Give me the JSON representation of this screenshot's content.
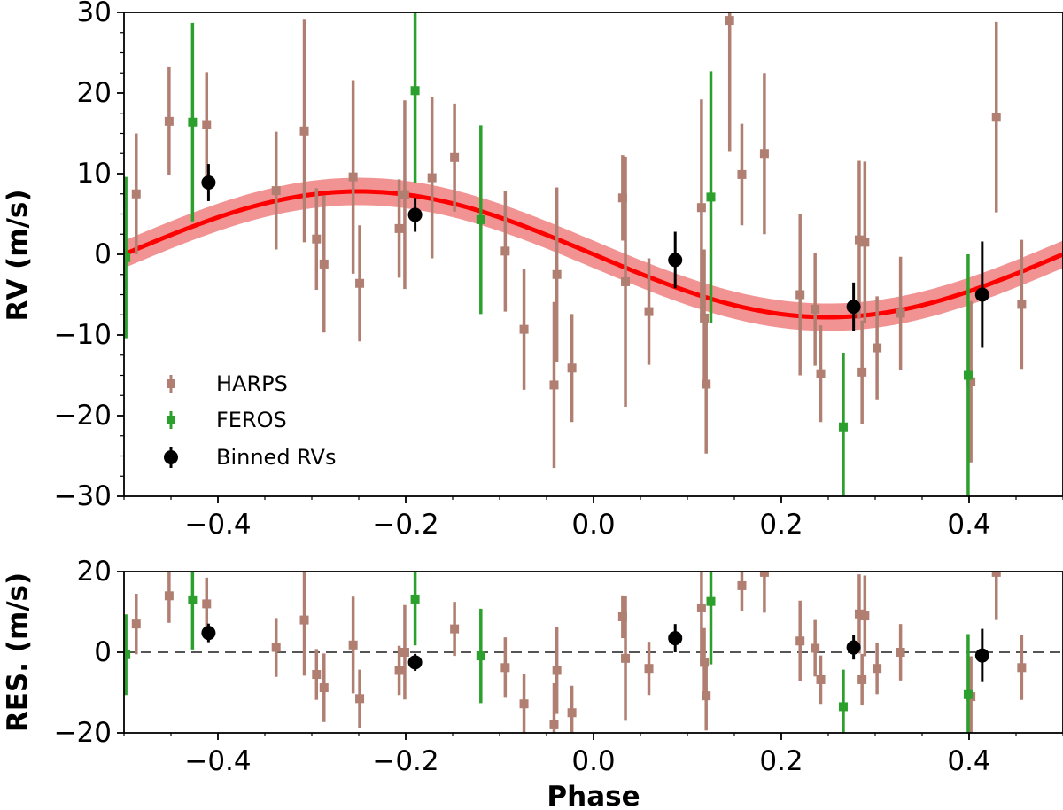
{
  "chart_data": [
    {
      "type": "scatter",
      "panel": "main",
      "ylabel": "RV (m/s)",
      "xlim": [
        -0.5,
        0.5
      ],
      "ylim": [
        -30,
        30
      ],
      "xticks": [
        -0.4,
        -0.2,
        0.0,
        0.2,
        0.4
      ],
      "xtick_labels": [
        "−0.4",
        "−0.2",
        "0.0",
        "0.2",
        "0.4"
      ],
      "yticks": [
        -30,
        -20,
        -10,
        0,
        10,
        20,
        30
      ],
      "ytick_labels": [
        "−30",
        "−20",
        "−10",
        "0",
        "10",
        "20",
        "30"
      ],
      "legend_position": "lower-left",
      "model": {
        "label": "",
        "amplitude": 7.8,
        "peak_phase": -0.25,
        "band_halfwidth": 1.7,
        "color": "#ff0000",
        "band_color": "#f08080"
      },
      "series": [
        {
          "name": "HARPS",
          "color": "#b07f72",
          "points": [
            {
              "x": -0.487,
              "y": 7.5,
              "err": 7.5
            },
            {
              "x": -0.452,
              "y": 16.5,
              "err": 6.7
            },
            {
              "x": -0.412,
              "y": 16.1,
              "err": 6.5
            },
            {
              "x": -0.338,
              "y": 7.9,
              "err": 7.3
            },
            {
              "x": -0.308,
              "y": 15.3,
              "err": 13.8
            },
            {
              "x": -0.295,
              "y": 1.9,
              "err": 6.3
            },
            {
              "x": -0.287,
              "y": -1.2,
              "err": 8.5
            },
            {
              "x": -0.256,
              "y": 9.6,
              "err": 12.0
            },
            {
              "x": -0.249,
              "y": -3.6,
              "err": 7.2
            },
            {
              "x": -0.207,
              "y": 3.2,
              "err": 6.1
            },
            {
              "x": -0.201,
              "y": 7.4,
              "err": 11.7
            },
            {
              "x": -0.172,
              "y": 9.5,
              "err": 10.0
            },
            {
              "x": -0.148,
              "y": 12.0,
              "err": 6.7
            },
            {
              "x": -0.094,
              "y": 0.4,
              "err": 7.5
            },
            {
              "x": -0.074,
              "y": -9.3,
              "err": 7.5
            },
            {
              "x": -0.042,
              "y": -16.2,
              "err": 10.3
            },
            {
              "x": -0.039,
              "y": -2.5,
              "err": 10.8
            },
            {
              "x": -0.023,
              "y": -14.1,
              "err": 6.7
            },
            {
              "x": 0.031,
              "y": 7.0,
              "err": 5.3
            },
            {
              "x": 0.034,
              "y": -3.4,
              "err": 15.5
            },
            {
              "x": 0.059,
              "y": -7.1,
              "err": 6.6
            },
            {
              "x": 0.115,
              "y": 5.8,
              "err": 13.4
            },
            {
              "x": 0.118,
              "y": -7.9,
              "err": 8.5
            },
            {
              "x": 0.12,
              "y": -16.1,
              "err": 8.6
            },
            {
              "x": 0.158,
              "y": 9.9,
              "err": 6.3
            },
            {
              "x": 0.145,
              "y": 29.0,
              "err": 16.2
            },
            {
              "x": 0.182,
              "y": 12.5,
              "err": 10.0
            },
            {
              "x": 0.22,
              "y": -5.0,
              "err": 10.0
            },
            {
              "x": 0.236,
              "y": -6.8,
              "err": 7.0
            },
            {
              "x": 0.242,
              "y": -14.8,
              "err": 6.0
            },
            {
              "x": 0.283,
              "y": 1.8,
              "err": 9.8
            },
            {
              "x": 0.286,
              "y": -14.6,
              "err": 6.4
            },
            {
              "x": 0.289,
              "y": 1.5,
              "err": 10.0
            },
            {
              "x": 0.302,
              "y": -11.6,
              "err": 6.4
            },
            {
              "x": 0.327,
              "y": -7.3,
              "err": 7.0
            },
            {
              "x": 0.402,
              "y": -15.8,
              "err": 10.0
            },
            {
              "x": 0.429,
              "y": 17.0,
              "err": 11.8
            },
            {
              "x": 0.456,
              "y": -6.2,
              "err": 8.0
            }
          ]
        },
        {
          "name": "FEROS",
          "color": "#2ca02c",
          "points": [
            {
              "x": -0.498,
              "y": -0.4,
              "err": 10.0
            },
            {
              "x": -0.427,
              "y": 16.4,
              "err": 12.3
            },
            {
              "x": -0.19,
              "y": 20.3,
              "err": 11.5
            },
            {
              "x": -0.12,
              "y": 4.3,
              "err": 11.7
            },
            {
              "x": 0.125,
              "y": 7.1,
              "err": 15.6
            },
            {
              "x": 0.266,
              "y": -21.4,
              "err": 9.2
            },
            {
              "x": 0.399,
              "y": -15.0,
              "err": 15.0
            }
          ]
        },
        {
          "name": "Binned RVs",
          "color": "#000000",
          "points": [
            {
              "x": -0.41,
              "y": 8.9,
              "err": 2.3
            },
            {
              "x": -0.19,
              "y": 4.9,
              "err": 2.1
            },
            {
              "x": 0.087,
              "y": -0.7,
              "err": 3.5
            },
            {
              "x": 0.277,
              "y": -6.5,
              "err": 3.0
            },
            {
              "x": 0.414,
              "y": -5.0,
              "err": 6.6
            }
          ]
        }
      ]
    },
    {
      "type": "scatter",
      "panel": "residuals",
      "xlabel": "Phase",
      "ylabel": "RES. (m/s)",
      "xlim": [
        -0.5,
        0.5
      ],
      "ylim": [
        -20,
        20
      ],
      "xticks": [
        -0.4,
        -0.2,
        0.0,
        0.2,
        0.4
      ],
      "xtick_labels": [
        "−0.4",
        "−0.2",
        "0.0",
        "0.2",
        "0.4"
      ],
      "yticks": [
        -20,
        0,
        20
      ],
      "ytick_labels": [
        "−20",
        "0",
        "20"
      ],
      "zero_line": true,
      "series": [
        {
          "name": "HARPS",
          "color": "#b07f72",
          "points": [
            {
              "x": -0.487,
              "y": 7.0,
              "err": 7.5
            },
            {
              "x": -0.452,
              "y": 14.0,
              "err": 6.7
            },
            {
              "x": -0.412,
              "y": 12.0,
              "err": 6.5
            },
            {
              "x": -0.338,
              "y": 1.2,
              "err": 7.3
            },
            {
              "x": -0.308,
              "y": 8.0,
              "err": 13.8
            },
            {
              "x": -0.295,
              "y": -5.5,
              "err": 6.3
            },
            {
              "x": -0.287,
              "y": -8.8,
              "err": 8.5
            },
            {
              "x": -0.256,
              "y": 1.8,
              "err": 12.0
            },
            {
              "x": -0.249,
              "y": -11.5,
              "err": 7.2
            },
            {
              "x": -0.207,
              "y": -4.5,
              "err": 6.1
            },
            {
              "x": -0.201,
              "y": 0.0,
              "err": 11.7
            },
            {
              "x": -0.148,
              "y": 5.8,
              "err": 6.7
            },
            {
              "x": -0.094,
              "y": -3.8,
              "err": 7.5
            },
            {
              "x": -0.074,
              "y": -12.8,
              "err": 7.5
            },
            {
              "x": -0.042,
              "y": -18.0,
              "err": 10.3
            },
            {
              "x": -0.039,
              "y": -4.5,
              "err": 10.8
            },
            {
              "x": -0.023,
              "y": -15.0,
              "err": 6.7
            },
            {
              "x": 0.031,
              "y": 8.8,
              "err": 5.3
            },
            {
              "x": 0.034,
              "y": -1.5,
              "err": 15.5
            },
            {
              "x": 0.059,
              "y": -4.0,
              "err": 6.6
            },
            {
              "x": 0.115,
              "y": 11.0,
              "err": 13.4
            },
            {
              "x": 0.118,
              "y": -2.5,
              "err": 8.5
            },
            {
              "x": 0.12,
              "y": -10.8,
              "err": 8.6
            },
            {
              "x": 0.158,
              "y": 16.5,
              "err": 6.3
            },
            {
              "x": 0.182,
              "y": 19.8,
              "err": 10.0
            },
            {
              "x": 0.22,
              "y": 2.8,
              "err": 10.0
            },
            {
              "x": 0.236,
              "y": 1.0,
              "err": 7.0
            },
            {
              "x": 0.242,
              "y": -6.8,
              "err": 6.0
            },
            {
              "x": 0.283,
              "y": 9.5,
              "err": 9.8
            },
            {
              "x": 0.286,
              "y": -6.8,
              "err": 6.4
            },
            {
              "x": 0.289,
              "y": 9.0,
              "err": 10.0
            },
            {
              "x": 0.302,
              "y": -4.0,
              "err": 6.4
            },
            {
              "x": 0.327,
              "y": 0.0,
              "err": 7.0
            },
            {
              "x": 0.402,
              "y": -11.0,
              "err": 10.0
            },
            {
              "x": 0.429,
              "y": 19.8,
              "err": 11.8
            },
            {
              "x": 0.456,
              "y": -3.8,
              "err": 8.0
            }
          ]
        },
        {
          "name": "FEROS",
          "color": "#2ca02c",
          "points": [
            {
              "x": -0.498,
              "y": -0.6,
              "err": 10.0
            },
            {
              "x": -0.427,
              "y": 13.0,
              "err": 12.3
            },
            {
              "x": -0.19,
              "y": 13.2,
              "err": 11.5
            },
            {
              "x": -0.12,
              "y": -0.9,
              "err": 11.7
            },
            {
              "x": 0.125,
              "y": 12.6,
              "err": 15.6
            },
            {
              "x": 0.266,
              "y": -13.5,
              "err": 9.2
            },
            {
              "x": 0.399,
              "y": -10.5,
              "err": 15.0
            }
          ]
        },
        {
          "name": "Binned RVs",
          "color": "#000000",
          "points": [
            {
              "x": -0.41,
              "y": 4.8,
              "err": 2.3
            },
            {
              "x": -0.19,
              "y": -2.5,
              "err": 2.1
            },
            {
              "x": 0.087,
              "y": 3.5,
              "err": 3.5
            },
            {
              "x": 0.277,
              "y": 1.2,
              "err": 3.0
            },
            {
              "x": 0.414,
              "y": -0.8,
              "err": 6.6
            }
          ]
        }
      ]
    }
  ]
}
